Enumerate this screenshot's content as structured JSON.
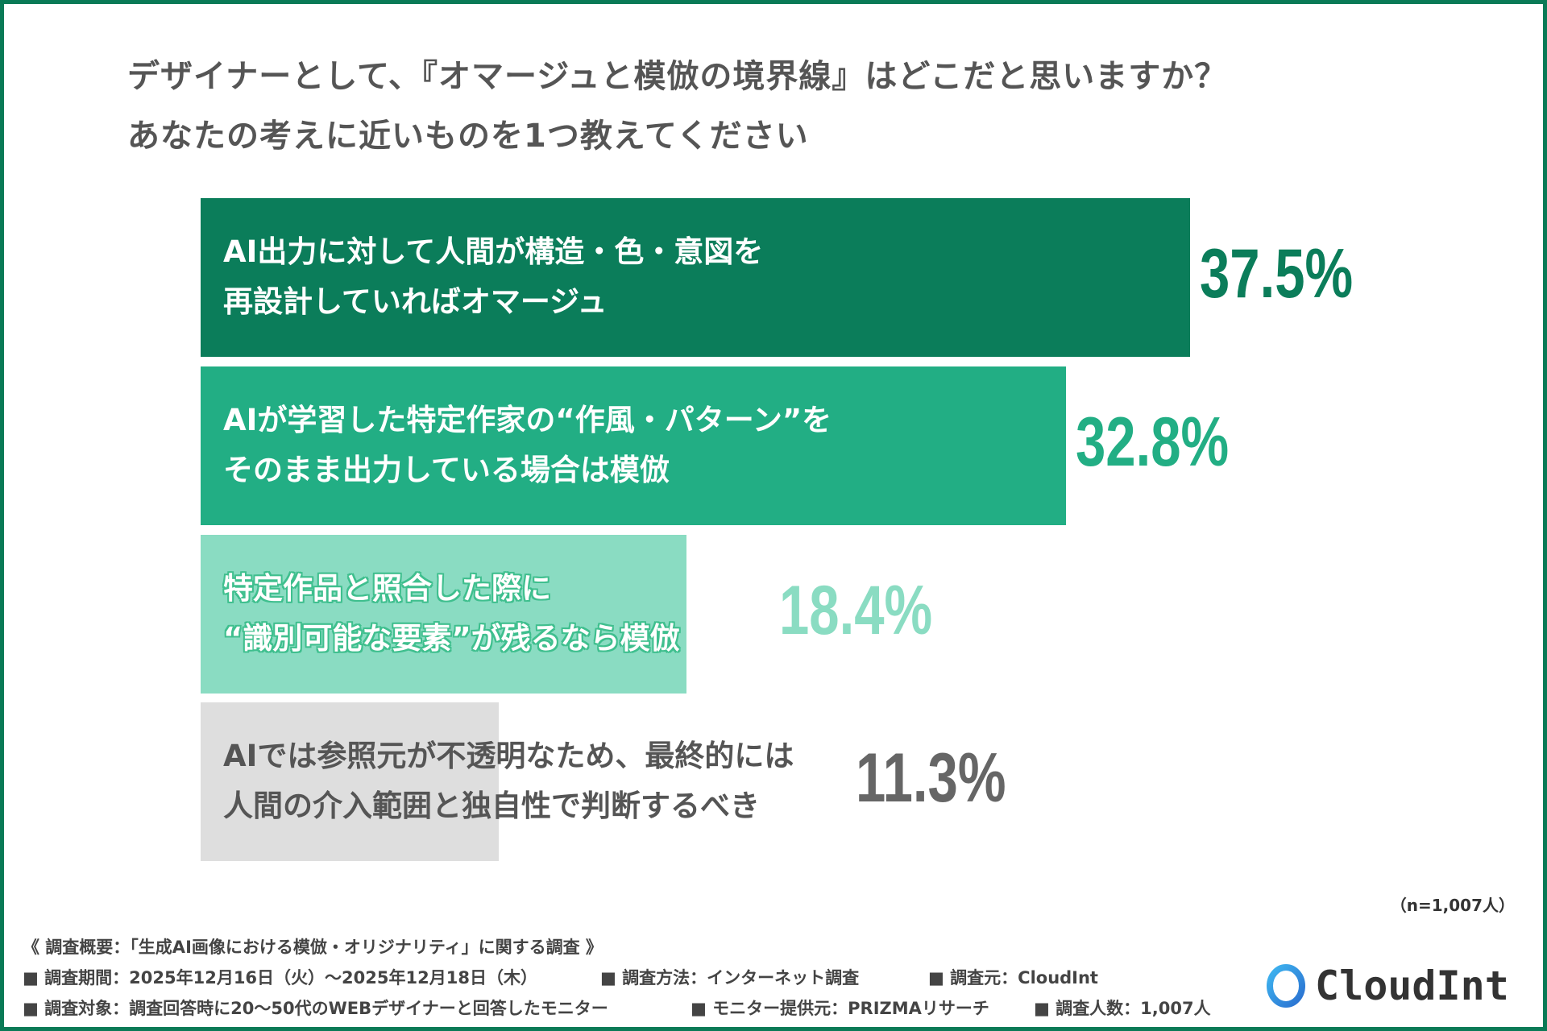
{
  "title": {
    "line1": "デザイナーとして、『オマージュと模倣の境界線』はどこだと思いますか？",
    "line2": "あなたの考えに近いものを1つ教えてください"
  },
  "chart_data": {
    "type": "bar",
    "orientation": "horizontal",
    "categories": [
      [
        "AI出力に対して人間が構造・色・意図を",
        "再設計していればオマージュ"
      ],
      [
        "AIが学習した特定作家の“作風・パターン”を",
        "そのまま出力している場合は模倣"
      ],
      [
        "特定作品と照合した際に",
        "“識別可能な要素”が残るなら模倣"
      ],
      [
        "AIでは参照元が不透明なため、最終的には",
        "人間の介入範囲と独自性で判断するべき"
      ]
    ],
    "values": [
      37.5,
      32.8,
      18.4,
      11.3
    ],
    "value_labels": [
      "37.5%",
      "32.8%",
      "18.4%",
      "11.3%"
    ],
    "colors": [
      "#0b7d5a",
      "#22ae84",
      "#8adcc2",
      "#dedede"
    ],
    "label_colors": [
      "#ffffff",
      "#ffffff",
      "#ffffff",
      "#555555"
    ],
    "value_colors": [
      "#0b7d5a",
      "#22ae84",
      "#8adcc2",
      "#666666"
    ],
    "xlim": [
      0,
      100
    ],
    "grid": false,
    "sample_note": "（n=1,007人）"
  },
  "footer": {
    "heading": "《 調査概要：「生成AI画像における模倣・オリジナリティ」に関する調査 》",
    "items": [
      "■ 調査期間：2025年12月16日（火）〜2025年12月18日（木）",
      "■ 調査方法：インターネット調査",
      "■ 調査元：CloudInt",
      "■ 調査対象：調査回答時に20〜50代のWEBデザイナーと回答したモニター",
      "■ モニター提供元：PRIZMAリサーチ",
      "■ 調査人数：1,007人"
    ]
  },
  "logo": {
    "text": "CloudInt",
    "icon": "ring-logo-icon"
  }
}
